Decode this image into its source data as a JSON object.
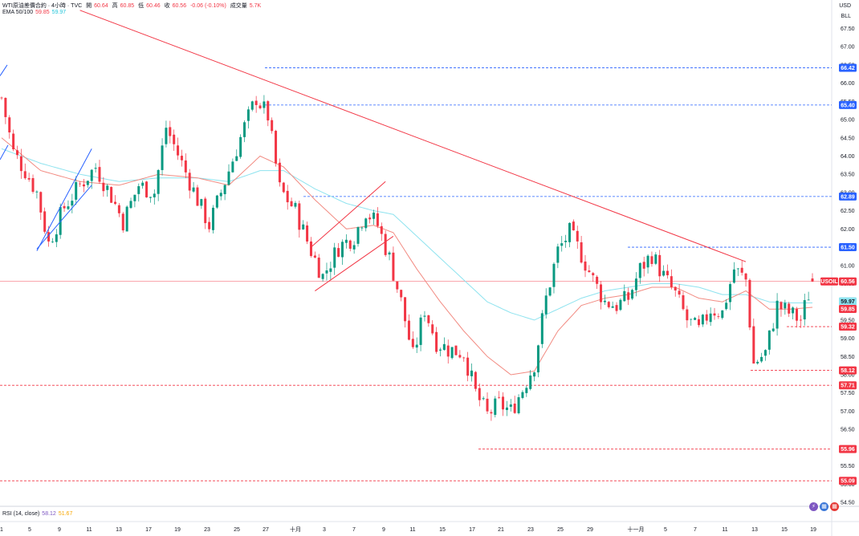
{
  "legend": {
    "symbol": "WTI原油差價合約 · 4小時 · TVC",
    "open_label": "開",
    "open_value": "60.64",
    "high_label": "高",
    "high_value": "60.85",
    "low_label": "低",
    "low_value": "60.46",
    "close_label": "收",
    "close_value": "60.56",
    "change": "-0.06 (-0.10%)",
    "volume_label": "成交量",
    "volume_value": "5.7K",
    "ema_label": "EMA 50/100",
    "ema50_value": "59.85",
    "ema100_value": "59.97"
  },
  "price_axis": {
    "currency": "USD",
    "unit": "BLL",
    "ticks": [
      "67.50",
      "67.00",
      "66.50",
      "66.00",
      "65.50",
      "65.00",
      "64.50",
      "64.00",
      "63.50",
      "63.00",
      "62.50",
      "62.00",
      "61.50",
      "61.00",
      "60.50",
      "60.00",
      "59.50",
      "59.00",
      "58.50",
      "58.00",
      "57.50",
      "57.00",
      "56.50",
      "56.00",
      "55.50",
      "55.00",
      "54.50"
    ]
  },
  "time_axis": {
    "ticks": [
      "1",
      "5",
      "9",
      "11",
      "13",
      "17",
      "19",
      "23",
      "25",
      "27",
      "十月",
      "3",
      "7",
      "9",
      "11",
      "15",
      "17",
      "21",
      "23",
      "25",
      "29",
      "十一月",
      "5",
      "7",
      "11",
      "13",
      "15",
      "19"
    ]
  },
  "rsi_legend": {
    "label": "RSI (14, close)",
    "rsi_value": "58.12",
    "ma_value": "51.67"
  },
  "badges": {
    "symbol_tag": "USOIL",
    "last_price": "60.56",
    "ema100_value": "59.97",
    "ema50_value": "59.85"
  },
  "levels": [
    {
      "price": 66.42,
      "label": "66.42",
      "style": "blue"
    },
    {
      "price": 65.4,
      "label": "65.40",
      "style": "blue"
    },
    {
      "price": 62.89,
      "label": "62.89",
      "style": "blue"
    },
    {
      "price": 61.5,
      "label": "61.50",
      "style": "blue"
    },
    {
      "price": 59.32,
      "label": "59.32",
      "style": "red"
    },
    {
      "price": 58.12,
      "label": "58.12",
      "style": "red"
    },
    {
      "price": 57.71,
      "label": "57.71",
      "style": "red"
    },
    {
      "price": 55.96,
      "label": "55.96",
      "style": "red"
    },
    {
      "price": 55.09,
      "label": "55.09",
      "style": "red"
    }
  ],
  "colors": {
    "up": "#089981",
    "down": "#f23645",
    "ema50": "#f28b82",
    "ema100": "#8ee3ef",
    "level_blue": "#2962ff",
    "level_red": "#f23645",
    "trend_red": "#f23645",
    "trend_blue": "#2962ff"
  },
  "chart_data": {
    "type": "candlestick",
    "title": "WTI原油差價合約 · 4小時 · TVC",
    "ylim": [
      54.4,
      67.8
    ],
    "path_points": [
      {
        "i": 0,
        "p": 65.6
      },
      {
        "i": 3,
        "p": 64.1
      },
      {
        "i": 6,
        "p": 63.6
      },
      {
        "i": 9,
        "p": 63.0
      },
      {
        "i": 12,
        "p": 61.6
      },
      {
        "i": 16,
        "p": 62.6
      },
      {
        "i": 20,
        "p": 63.2
      },
      {
        "i": 24,
        "p": 63.7
      },
      {
        "i": 28,
        "p": 62.9
      },
      {
        "i": 31,
        "p": 62.2
      },
      {
        "i": 35,
        "p": 63.2
      },
      {
        "i": 39,
        "p": 63.0
      },
      {
        "i": 42,
        "p": 64.8
      },
      {
        "i": 46,
        "p": 63.8
      },
      {
        "i": 50,
        "p": 62.8
      },
      {
        "i": 53,
        "p": 62.1
      },
      {
        "i": 57,
        "p": 63.3
      },
      {
        "i": 62,
        "p": 64.8
      },
      {
        "i": 65,
        "p": 65.6
      },
      {
        "i": 68,
        "p": 65.1
      },
      {
        "i": 71,
        "p": 63.1
      },
      {
        "i": 75,
        "p": 62.5
      },
      {
        "i": 79,
        "p": 61.4
      },
      {
        "i": 82,
        "p": 60.7
      },
      {
        "i": 86,
        "p": 61.5
      },
      {
        "i": 90,
        "p": 61.8
      },
      {
        "i": 93,
        "p": 62.5
      },
      {
        "i": 96,
        "p": 62.1
      },
      {
        "i": 99,
        "p": 61.2
      },
      {
        "i": 102,
        "p": 60.0
      },
      {
        "i": 105,
        "p": 58.5
      },
      {
        "i": 108,
        "p": 59.8
      },
      {
        "i": 111,
        "p": 58.9
      },
      {
        "i": 114,
        "p": 58.7
      },
      {
        "i": 118,
        "p": 58.6
      },
      {
        "i": 121,
        "p": 57.5
      },
      {
        "i": 124,
        "p": 56.9
      },
      {
        "i": 127,
        "p": 57.2
      },
      {
        "i": 130,
        "p": 57.0
      },
      {
        "i": 133,
        "p": 57.6
      },
      {
        "i": 136,
        "p": 58.3
      },
      {
        "i": 139,
        "p": 60.1
      },
      {
        "i": 142,
        "p": 61.4
      },
      {
        "i": 145,
        "p": 61.9
      },
      {
        "i": 148,
        "p": 61.3
      },
      {
        "i": 151,
        "p": 60.6
      },
      {
        "i": 154,
        "p": 60.0
      },
      {
        "i": 157,
        "p": 59.9
      },
      {
        "i": 160,
        "p": 60.1
      },
      {
        "i": 163,
        "p": 60.9
      },
      {
        "i": 166,
        "p": 61.3
      },
      {
        "i": 169,
        "p": 60.7
      },
      {
        "i": 172,
        "p": 60.2
      },
      {
        "i": 175,
        "p": 59.5
      },
      {
        "i": 178,
        "p": 59.2
      },
      {
        "i": 181,
        "p": 59.8
      },
      {
        "i": 184,
        "p": 59.7
      },
      {
        "i": 187,
        "p": 60.9
      },
      {
        "i": 190,
        "p": 60.6
      },
      {
        "i": 192,
        "p": 58.3
      },
      {
        "i": 195,
        "p": 58.6
      },
      {
        "i": 198,
        "p": 59.9
      },
      {
        "i": 201,
        "p": 59.7
      },
      {
        "i": 204,
        "p": 59.5
      },
      {
        "i": 207,
        "p": 60.56
      }
    ],
    "ema50_points": [
      {
        "i": 0,
        "p": 64.5
      },
      {
        "i": 10,
        "p": 63.6
      },
      {
        "i": 20,
        "p": 63.3
      },
      {
        "i": 30,
        "p": 63.2
      },
      {
        "i": 40,
        "p": 63.5
      },
      {
        "i": 50,
        "p": 63.4
      },
      {
        "i": 58,
        "p": 63.2
      },
      {
        "i": 66,
        "p": 64.0
      },
      {
        "i": 72,
        "p": 63.7
      },
      {
        "i": 80,
        "p": 62.8
      },
      {
        "i": 88,
        "p": 62.0
      },
      {
        "i": 95,
        "p": 62.1
      },
      {
        "i": 100,
        "p": 61.9
      },
      {
        "i": 106,
        "p": 60.9
      },
      {
        "i": 112,
        "p": 60.0
      },
      {
        "i": 118,
        "p": 59.2
      },
      {
        "i": 124,
        "p": 58.5
      },
      {
        "i": 130,
        "p": 58.0
      },
      {
        "i": 136,
        "p": 58.1
      },
      {
        "i": 142,
        "p": 59.2
      },
      {
        "i": 148,
        "p": 59.9
      },
      {
        "i": 154,
        "p": 60.1
      },
      {
        "i": 160,
        "p": 60.2
      },
      {
        "i": 166,
        "p": 60.4
      },
      {
        "i": 172,
        "p": 60.4
      },
      {
        "i": 178,
        "p": 60.1
      },
      {
        "i": 184,
        "p": 60.0
      },
      {
        "i": 190,
        "p": 60.3
      },
      {
        "i": 196,
        "p": 59.8
      },
      {
        "i": 202,
        "p": 59.8
      },
      {
        "i": 207,
        "p": 59.85
      }
    ],
    "ema100_points": [
      {
        "i": 0,
        "p": 64.2
      },
      {
        "i": 10,
        "p": 63.8
      },
      {
        "i": 20,
        "p": 63.5
      },
      {
        "i": 30,
        "p": 63.3
      },
      {
        "i": 40,
        "p": 63.4
      },
      {
        "i": 50,
        "p": 63.4
      },
      {
        "i": 58,
        "p": 63.3
      },
      {
        "i": 66,
        "p": 63.6
      },
      {
        "i": 72,
        "p": 63.6
      },
      {
        "i": 80,
        "p": 63.1
      },
      {
        "i": 88,
        "p": 62.7
      },
      {
        "i": 95,
        "p": 62.5
      },
      {
        "i": 100,
        "p": 62.4
      },
      {
        "i": 106,
        "p": 61.8
      },
      {
        "i": 112,
        "p": 61.2
      },
      {
        "i": 118,
        "p": 60.6
      },
      {
        "i": 124,
        "p": 60.0
      },
      {
        "i": 130,
        "p": 59.7
      },
      {
        "i": 136,
        "p": 59.5
      },
      {
        "i": 142,
        "p": 59.8
      },
      {
        "i": 148,
        "p": 60.1
      },
      {
        "i": 154,
        "p": 60.3
      },
      {
        "i": 160,
        "p": 60.4
      },
      {
        "i": 166,
        "p": 60.5
      },
      {
        "i": 172,
        "p": 60.5
      },
      {
        "i": 178,
        "p": 60.4
      },
      {
        "i": 184,
        "p": 60.2
      },
      {
        "i": 190,
        "p": 60.2
      },
      {
        "i": 196,
        "p": 60.0
      },
      {
        "i": 202,
        "p": 59.97
      },
      {
        "i": 207,
        "p": 59.97
      }
    ],
    "trendlines": [
      {
        "color": "red",
        "from": {
          "i": 20,
          "p": 68.0
        },
        "to": {
          "i": 190,
          "p": 61.1
        }
      },
      {
        "color": "blue",
        "from": {
          "i": 9,
          "p": 61.4
        },
        "to": {
          "i": 23,
          "p": 64.2
        }
      },
      {
        "color": "blue",
        "from": {
          "i": 0,
          "p": 64.0
        },
        "to": {
          "i": 0,
          "p": 64.0
        }
      },
      {
        "color": "red",
        "from": {
          "i": 79,
          "p": 61.5
        },
        "to": {
          "i": 98,
          "p": 63.3
        }
      },
      {
        "color": "red",
        "from": {
          "i": 80,
          "p": 60.3
        },
        "to": {
          "i": 100,
          "p": 61.8
        }
      }
    ]
  }
}
